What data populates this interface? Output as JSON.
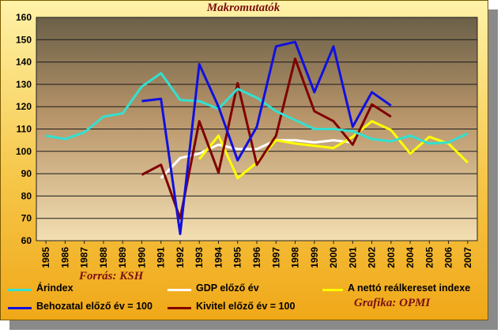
{
  "chart_data": {
    "type": "line",
    "title": "Makromutatók",
    "x": [
      "1985",
      "1986",
      "1987",
      "1988",
      "1989",
      "1990",
      "1991",
      "1992",
      "1993",
      "1994",
      "1995",
      "1996",
      "1997",
      "1998",
      "1999",
      "2000",
      "2001",
      "2002",
      "2003",
      "2004",
      "2005",
      "2006",
      "2007"
    ],
    "ylim": [
      60,
      160
    ],
    "yticks": [
      60,
      70,
      80,
      90,
      100,
      110,
      120,
      130,
      140,
      150,
      160
    ],
    "grid": true,
    "legend_position": "bottom",
    "series": [
      {
        "name": "Árindex",
        "color": "#33e0d0",
        "values": [
          107,
          105.5,
          108.5,
          115.5,
          117,
          129,
          135,
          123,
          122.5,
          119,
          128,
          124,
          118,
          114,
          110,
          110,
          109,
          105.5,
          104.5,
          107,
          103.5,
          104,
          108
        ]
      },
      {
        "name": "GDP előző év",
        "color": "#ffffff",
        "values": [
          null,
          null,
          null,
          null,
          null,
          null,
          88,
          97,
          99,
          103,
          101,
          101,
          105,
          105,
          104,
          105,
          104,
          null,
          null,
          null,
          null,
          null,
          null
        ]
      },
      {
        "name": "A nettó reálkereset indexe",
        "color": "#ffff00",
        "values": [
          null,
          null,
          null,
          null,
          null,
          null,
          null,
          null,
          96.5,
          107,
          88,
          95,
          105,
          103.5,
          102.5,
          101.5,
          106.5,
          113.5,
          109.5,
          99,
          106.5,
          103.5,
          95
        ]
      },
      {
        "name": "Behozatal előző év = 100",
        "color": "#1010e0",
        "values": [
          null,
          null,
          null,
          null,
          null,
          122.5,
          123.5,
          63,
          139,
          120,
          96,
          111,
          147,
          149,
          126.5,
          147,
          111,
          126.5,
          120.5,
          null,
          null,
          null,
          null
        ]
      },
      {
        "name": "Kivitel előző év = 100",
        "color": "#800000",
        "values": [
          null,
          null,
          null,
          null,
          null,
          89.5,
          94,
          70,
          113.5,
          90.5,
          130.5,
          94,
          107,
          141.5,
          118,
          113.5,
          103,
          121,
          115.5,
          null,
          null,
          null,
          null
        ]
      }
    ]
  },
  "credits": {
    "source": "Forrás: KSH",
    "graphics": "Grafika: OPMI"
  }
}
